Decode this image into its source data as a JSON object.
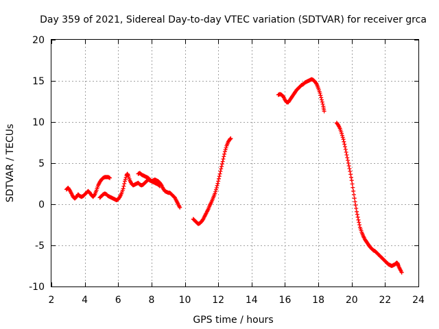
{
  "chart_data": {
    "type": "scatter",
    "title": "Day 359 of 2021, Sidereal Day-to-day VTEC variation (SDTVAR) for receiver grca",
    "xlabel": "GPS time / hours",
    "ylabel": "SDTVAR / TECUs",
    "xlim": [
      2,
      24
    ],
    "ylim": [
      -10,
      20
    ],
    "xticks": [
      2,
      4,
      6,
      8,
      10,
      12,
      14,
      16,
      18,
      20,
      22,
      24
    ],
    "yticks": [
      -10,
      -5,
      0,
      5,
      10,
      15,
      20
    ],
    "grid": true,
    "marker": "plus",
    "series": [
      {
        "name": "SDTVAR",
        "color": "#ff0000",
        "segments": [
          [
            [
              2.9,
              1.8
            ],
            [
              3.0,
              2.0
            ],
            [
              3.1,
              1.7
            ],
            [
              3.2,
              1.3
            ],
            [
              3.3,
              0.9
            ],
            [
              3.4,
              0.7
            ],
            [
              3.5,
              0.9
            ],
            [
              3.6,
              1.2
            ],
            [
              3.7,
              1.0
            ],
            [
              3.8,
              0.9
            ],
            [
              3.9,
              1.0
            ],
            [
              4.0,
              1.2
            ],
            [
              4.1,
              1.4
            ],
            [
              4.2,
              1.6
            ],
            [
              4.3,
              1.4
            ],
            [
              4.4,
              1.1
            ],
            [
              4.5,
              0.9
            ],
            [
              4.6,
              1.2
            ],
            [
              4.7,
              1.7
            ],
            [
              4.8,
              2.3
            ],
            [
              4.9,
              2.7
            ],
            [
              5.0,
              3.0
            ],
            [
              5.1,
              3.2
            ],
            [
              5.2,
              3.3
            ],
            [
              5.3,
              3.3
            ],
            [
              5.4,
              3.3
            ],
            [
              5.5,
              3.2
            ]
          ],
          [
            [
              4.9,
              0.8
            ],
            [
              5.0,
              1.0
            ],
            [
              5.1,
              1.2
            ],
            [
              5.2,
              1.3
            ],
            [
              5.3,
              1.2
            ],
            [
              5.4,
              1.0
            ],
            [
              5.5,
              0.9
            ],
            [
              5.6,
              0.8
            ],
            [
              5.7,
              0.7
            ],
            [
              5.8,
              0.6
            ],
            [
              5.9,
              0.5
            ],
            [
              6.0,
              0.6
            ],
            [
              6.1,
              0.9
            ],
            [
              6.2,
              1.3
            ],
            [
              6.3,
              1.9
            ],
            [
              6.4,
              2.8
            ],
            [
              6.5,
              3.5
            ],
            [
              6.55,
              3.7
            ],
            [
              6.6,
              3.5
            ],
            [
              6.7,
              2.9
            ],
            [
              6.8,
              2.5
            ],
            [
              6.9,
              2.3
            ],
            [
              7.0,
              2.4
            ],
            [
              7.1,
              2.5
            ],
            [
              7.2,
              2.6
            ],
            [
              7.3,
              2.4
            ],
            [
              7.4,
              2.3
            ],
            [
              7.5,
              2.4
            ],
            [
              7.6,
              2.6
            ],
            [
              7.7,
              2.8
            ],
            [
              7.8,
              3.0
            ],
            [
              7.9,
              2.9
            ],
            [
              8.0,
              2.8
            ],
            [
              8.1,
              2.9
            ],
            [
              8.2,
              3.0
            ],
            [
              8.3,
              2.9
            ],
            [
              8.4,
              2.8
            ],
            [
              8.5,
              2.6
            ],
            [
              8.6,
              2.3
            ],
            [
              8.7,
              1.9
            ],
            [
              8.8,
              1.6
            ],
            [
              8.9,
              1.5
            ],
            [
              9.0,
              1.4
            ],
            [
              9.1,
              1.4
            ],
            [
              9.2,
              1.2
            ],
            [
              9.3,
              1.0
            ],
            [
              9.4,
              0.8
            ],
            [
              9.5,
              0.4
            ],
            [
              9.6,
              0.0
            ],
            [
              9.7,
              -0.4
            ]
          ],
          [
            [
              7.2,
              3.7
            ],
            [
              7.3,
              3.8
            ],
            [
              7.4,
              3.6
            ],
            [
              7.5,
              3.5
            ],
            [
              7.6,
              3.4
            ],
            [
              7.7,
              3.3
            ],
            [
              7.8,
              3.2
            ],
            [
              7.9,
              3.0
            ],
            [
              8.0,
              2.8
            ],
            [
              8.1,
              2.7
            ],
            [
              8.2,
              2.6
            ],
            [
              8.3,
              2.5
            ],
            [
              8.4,
              2.4
            ],
            [
              8.5,
              2.2
            ]
          ],
          [
            [
              10.5,
              -1.8
            ],
            [
              10.6,
              -2.0
            ],
            [
              10.7,
              -2.2
            ],
            [
              10.8,
              -2.4
            ],
            [
              10.9,
              -2.3
            ],
            [
              11.0,
              -2.1
            ],
            [
              11.1,
              -1.8
            ],
            [
              11.2,
              -1.4
            ],
            [
              11.3,
              -1.0
            ],
            [
              11.4,
              -0.6
            ],
            [
              11.5,
              -0.1
            ],
            [
              11.6,
              0.3
            ],
            [
              11.7,
              0.8
            ],
            [
              11.8,
              1.3
            ],
            [
              11.9,
              2.0
            ],
            [
              12.0,
              2.8
            ],
            [
              12.1,
              3.7
            ],
            [
              12.2,
              4.6
            ],
            [
              12.3,
              5.5
            ],
            [
              12.4,
              6.4
            ],
            [
              12.5,
              7.1
            ],
            [
              12.6,
              7.6
            ],
            [
              12.7,
              7.9
            ],
            [
              12.75,
              8.0
            ]
          ],
          [
            [
              15.6,
              13.3
            ],
            [
              15.7,
              13.4
            ],
            [
              15.8,
              13.3
            ],
            [
              15.9,
              13.1
            ],
            [
              16.0,
              12.7
            ],
            [
              16.1,
              12.4
            ],
            [
              16.2,
              12.4
            ],
            [
              16.3,
              12.7
            ],
            [
              16.4,
              13.0
            ],
            [
              16.5,
              13.3
            ],
            [
              16.6,
              13.6
            ],
            [
              16.7,
              13.9
            ],
            [
              16.8,
              14.1
            ],
            [
              16.9,
              14.3
            ],
            [
              17.0,
              14.5
            ],
            [
              17.1,
              14.6
            ],
            [
              17.2,
              14.8
            ],
            [
              17.3,
              14.9
            ],
            [
              17.4,
              15.0
            ],
            [
              17.5,
              15.1
            ],
            [
              17.6,
              15.2
            ],
            [
              17.7,
              15.1
            ],
            [
              17.8,
              14.9
            ],
            [
              17.9,
              14.6
            ],
            [
              18.0,
              14.1
            ],
            [
              18.1,
              13.5
            ],
            [
              18.2,
              12.7
            ],
            [
              18.3,
              11.9
            ],
            [
              18.35,
              11.3
            ]
          ],
          [
            [
              19.1,
              9.9
            ],
            [
              19.2,
              9.6
            ],
            [
              19.3,
              9.2
            ],
            [
              19.4,
              8.6
            ],
            [
              19.5,
              7.9
            ],
            [
              19.6,
              7.0
            ],
            [
              19.7,
              6.0
            ],
            [
              19.8,
              5.0
            ],
            [
              19.9,
              4.0
            ],
            [
              20.0,
              2.9
            ],
            [
              20.1,
              1.6
            ],
            [
              20.2,
              0.3
            ],
            [
              20.3,
              -0.9
            ],
            [
              20.4,
              -1.9
            ],
            [
              20.5,
              -2.8
            ],
            [
              20.6,
              -3.4
            ],
            [
              20.7,
              -3.9
            ],
            [
              20.8,
              -4.3
            ],
            [
              20.9,
              -4.6
            ],
            [
              21.0,
              -4.9
            ],
            [
              21.1,
              -5.2
            ],
            [
              21.2,
              -5.4
            ],
            [
              21.3,
              -5.6
            ],
            [
              21.4,
              -5.7
            ],
            [
              21.5,
              -5.9
            ],
            [
              21.6,
              -6.1
            ],
            [
              21.7,
              -6.3
            ],
            [
              21.8,
              -6.5
            ],
            [
              21.9,
              -6.7
            ],
            [
              22.0,
              -6.9
            ],
            [
              22.1,
              -7.1
            ],
            [
              22.2,
              -7.3
            ],
            [
              22.3,
              -7.4
            ],
            [
              22.4,
              -7.5
            ],
            [
              22.5,
              -7.4
            ],
            [
              22.6,
              -7.3
            ],
            [
              22.7,
              -7.1
            ],
            [
              22.75,
              -7.2
            ],
            [
              22.8,
              -7.5
            ],
            [
              22.9,
              -7.9
            ],
            [
              23.0,
              -8.3
            ]
          ]
        ]
      }
    ]
  }
}
